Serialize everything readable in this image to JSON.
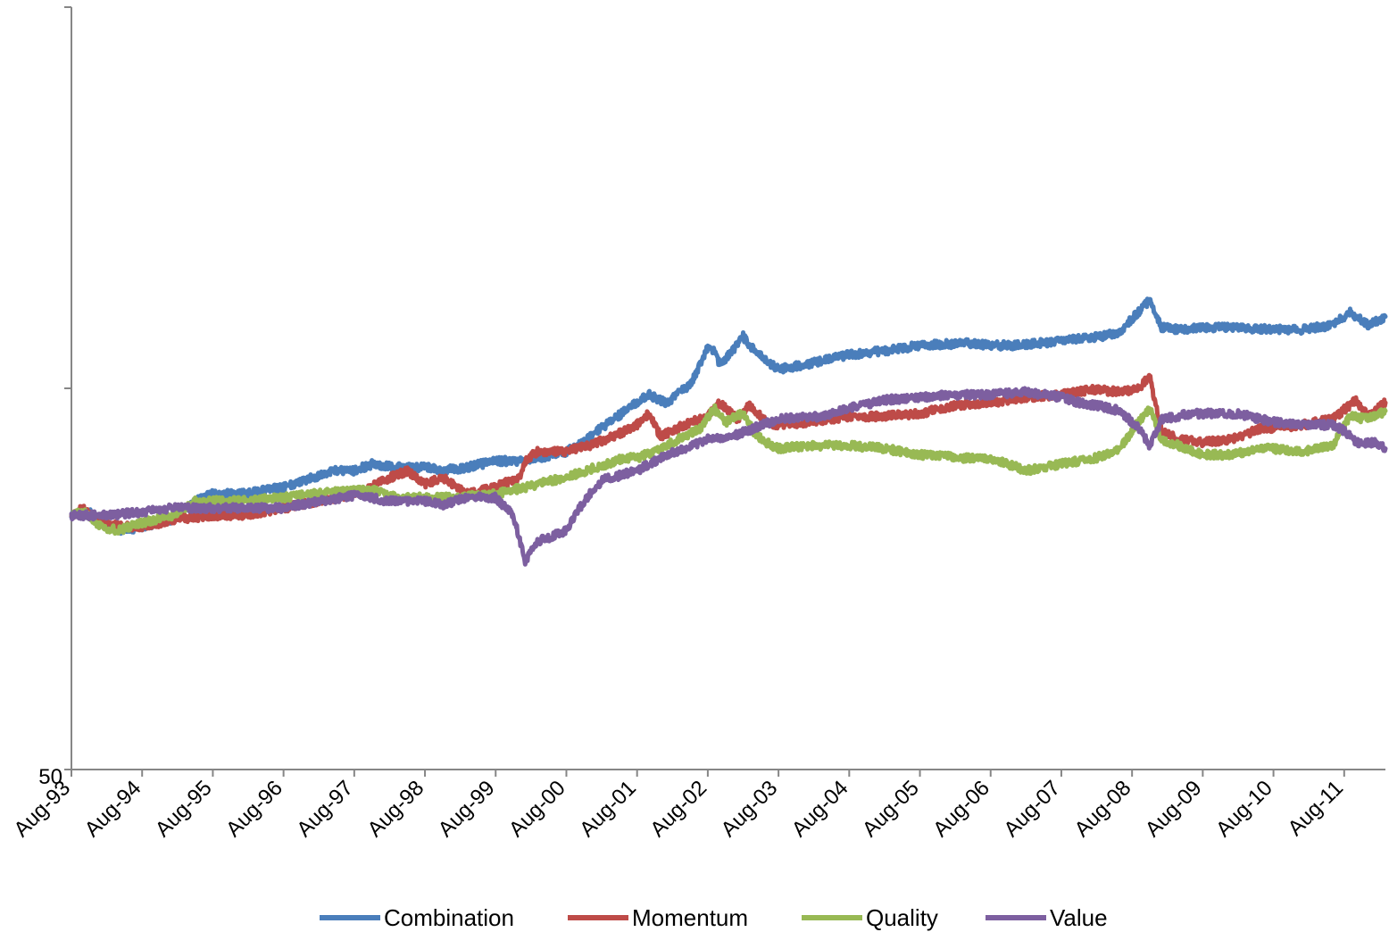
{
  "chart_data": {
    "type": "line",
    "y_scale": "log",
    "ylim": [
      50,
      400
    ],
    "y_tick_values": [
      50,
      141.42,
      400
    ],
    "y_tick_labels": [
      "50",
      "",
      ""
    ],
    "xlim": [
      "1993-08",
      "2012-03"
    ],
    "x_tick_labels": [
      "Aug-93",
      "Aug-94",
      "Aug-95",
      "Aug-96",
      "Aug-97",
      "Aug-98",
      "Aug-99",
      "Aug-00",
      "Aug-01",
      "Aug-02",
      "Aug-03",
      "Aug-04",
      "Aug-05",
      "Aug-06",
      "Aug-07",
      "Aug-08",
      "Aug-09",
      "Aug-10",
      "Aug-11"
    ],
    "x_tick_dates": [
      "1993-08",
      "1994-08",
      "1995-08",
      "1996-08",
      "1997-08",
      "1998-08",
      "1999-08",
      "2000-08",
      "2001-08",
      "2002-08",
      "2003-08",
      "2004-08",
      "2005-08",
      "2006-08",
      "2007-08",
      "2008-08",
      "2009-08",
      "2010-08",
      "2011-08"
    ],
    "grid": false,
    "legend_position": "bottom",
    "series": [
      {
        "name": "Combination",
        "color": "#4A7EBB",
        "points": [
          [
            "1993-08",
            100
          ],
          [
            "1993-11",
            101
          ],
          [
            "1994-02",
            97
          ],
          [
            "1994-05",
            96
          ],
          [
            "1994-08",
            97
          ],
          [
            "1995-01",
            99
          ],
          [
            "1995-05",
            104
          ],
          [
            "1995-08",
            106
          ],
          [
            "1996-01",
            106
          ],
          [
            "1996-08",
            108
          ],
          [
            "1997-01",
            111
          ],
          [
            "1997-05",
            113
          ],
          [
            "1997-08",
            113
          ],
          [
            "1997-11",
            115
          ],
          [
            "1998-03",
            114
          ],
          [
            "1998-08",
            114
          ],
          [
            "1998-11",
            113
          ],
          [
            "1999-03",
            114
          ],
          [
            "1999-08",
            116
          ],
          [
            "2000-01",
            116
          ],
          [
            "2000-08",
            119
          ],
          [
            "2000-10",
            121
          ],
          [
            "2001-02",
            127
          ],
          [
            "2001-06",
            133
          ],
          [
            "2001-08",
            136
          ],
          [
            "2001-10",
            139
          ],
          [
            "2002-01",
            136
          ],
          [
            "2002-05",
            143
          ],
          [
            "2002-07",
            152
          ],
          [
            "2002-08",
            158
          ],
          [
            "2002-09",
            157
          ],
          [
            "2002-10",
            151
          ],
          [
            "2002-12",
            156
          ],
          [
            "2003-02",
            163
          ],
          [
            "2003-03",
            159
          ],
          [
            "2003-06",
            152
          ],
          [
            "2003-08",
            149
          ],
          [
            "2004-01",
            151
          ],
          [
            "2004-08",
            155
          ],
          [
            "2005-03",
            157
          ],
          [
            "2005-08",
            159
          ],
          [
            "2006-04",
            160
          ],
          [
            "2006-08",
            159
          ],
          [
            "2007-01",
            159
          ],
          [
            "2007-08",
            161
          ],
          [
            "2008-03",
            163
          ],
          [
            "2008-06",
            165
          ],
          [
            "2008-09",
            174
          ],
          [
            "2008-11",
            180
          ],
          [
            "2009-01",
            167
          ],
          [
            "2009-04",
            166
          ],
          [
            "2009-08",
            167
          ],
          [
            "2010-01",
            167
          ],
          [
            "2010-08",
            166
          ],
          [
            "2011-01",
            166
          ],
          [
            "2011-06",
            168
          ],
          [
            "2011-09",
            174
          ],
          [
            "2011-12",
            168
          ],
          [
            "2012-03",
            172
          ]
        ]
      },
      {
        "name": "Momentum",
        "color": "#BE4B48",
        "points": [
          [
            "1993-08",
            100
          ],
          [
            "1993-10",
            102
          ],
          [
            "1994-01",
            98
          ],
          [
            "1994-05",
            97
          ],
          [
            "1994-08",
            97
          ],
          [
            "1995-02",
            99
          ],
          [
            "1995-08",
            100
          ],
          [
            "1996-01",
            100
          ],
          [
            "1996-08",
            102
          ],
          [
            "1997-02",
            104
          ],
          [
            "1997-08",
            106
          ],
          [
            "1998-01",
            110
          ],
          [
            "1998-05",
            113
          ],
          [
            "1998-08",
            109
          ],
          [
            "1998-11",
            111
          ],
          [
            "1999-03",
            106
          ],
          [
            "1999-08",
            108
          ],
          [
            "1999-12",
            111
          ],
          [
            "2000-01",
            116
          ],
          [
            "2000-03",
            119
          ],
          [
            "2000-08",
            119
          ],
          [
            "2000-12",
            121
          ],
          [
            "2001-05",
            125
          ],
          [
            "2001-08",
            128
          ],
          [
            "2001-10",
            132
          ],
          [
            "2001-12",
            124
          ],
          [
            "2002-04",
            128
          ],
          [
            "2002-08",
            131
          ],
          [
            "2002-10",
            136
          ],
          [
            "2003-01",
            130
          ],
          [
            "2003-03",
            135
          ],
          [
            "2003-06",
            129
          ],
          [
            "2003-08",
            128
          ],
          [
            "2004-01",
            129
          ],
          [
            "2004-08",
            131
          ],
          [
            "2005-02",
            131
          ],
          [
            "2005-08",
            132
          ],
          [
            "2006-02",
            135
          ],
          [
            "2006-08",
            136
          ],
          [
            "2007-02",
            138
          ],
          [
            "2007-08",
            139
          ],
          [
            "2008-01",
            141
          ],
          [
            "2008-06",
            140
          ],
          [
            "2008-09",
            141
          ],
          [
            "2008-11",
            146
          ],
          [
            "2009-01",
            126
          ],
          [
            "2009-04",
            123
          ],
          [
            "2009-08",
            122
          ],
          [
            "2010-01",
            123
          ],
          [
            "2010-06",
            127
          ],
          [
            "2010-08",
            127
          ],
          [
            "2011-01",
            128
          ],
          [
            "2011-06",
            130
          ],
          [
            "2011-10",
            137
          ],
          [
            "2011-12",
            131
          ],
          [
            "2012-03",
            136
          ]
        ]
      },
      {
        "name": "Quality",
        "color": "#98B954",
        "points": [
          [
            "1993-08",
            100
          ],
          [
            "1993-10",
            101
          ],
          [
            "1994-01",
            97
          ],
          [
            "1994-04",
            96
          ],
          [
            "1994-08",
            98
          ],
          [
            "1995-01",
            100
          ],
          [
            "1995-05",
            104
          ],
          [
            "1995-08",
            104
          ],
          [
            "1996-01",
            104
          ],
          [
            "1996-08",
            105
          ],
          [
            "1997-01",
            106
          ],
          [
            "1997-08",
            107
          ],
          [
            "1997-12",
            107
          ],
          [
            "1998-03",
            105
          ],
          [
            "1998-08",
            105
          ],
          [
            "1999-01",
            105
          ],
          [
            "1999-08",
            106
          ],
          [
            "2000-01",
            108
          ],
          [
            "2000-08",
            111
          ],
          [
            "2001-01",
            114
          ],
          [
            "2001-06",
            117
          ],
          [
            "2001-08",
            117
          ],
          [
            "2001-11",
            119
          ],
          [
            "2002-03",
            123
          ],
          [
            "2002-07",
            127
          ],
          [
            "2002-09",
            134
          ],
          [
            "2002-11",
            129
          ],
          [
            "2003-02",
            132
          ],
          [
            "2003-04",
            125
          ],
          [
            "2003-06",
            122
          ],
          [
            "2003-08",
            120
          ],
          [
            "2004-01",
            121
          ],
          [
            "2004-08",
            121
          ],
          [
            "2005-02",
            120
          ],
          [
            "2005-08",
            118
          ],
          [
            "2006-03",
            117
          ],
          [
            "2006-08",
            117
          ],
          [
            "2007-02",
            113
          ],
          [
            "2007-08",
            115
          ],
          [
            "2008-02",
            117
          ],
          [
            "2008-06",
            120
          ],
          [
            "2008-09",
            129
          ],
          [
            "2008-11",
            134
          ],
          [
            "2009-01",
            123
          ],
          [
            "2009-04",
            121
          ],
          [
            "2009-08",
            118
          ],
          [
            "2010-01",
            118
          ],
          [
            "2010-06",
            120
          ],
          [
            "2010-08",
            120
          ],
          [
            "2011-01",
            119
          ],
          [
            "2011-06",
            121
          ],
          [
            "2011-09",
            131
          ],
          [
            "2011-12",
            130
          ],
          [
            "2012-03",
            133
          ]
        ]
      },
      {
        "name": "Value",
        "color": "#7D5FA0",
        "points": [
          [
            "1993-08",
            100
          ],
          [
            "1993-11",
            100
          ],
          [
            "1994-02",
            100
          ],
          [
            "1994-08",
            101
          ],
          [
            "1995-01",
            102
          ],
          [
            "1995-06",
            102
          ],
          [
            "1995-08",
            102
          ],
          [
            "1996-01",
            102
          ],
          [
            "1996-08",
            102
          ],
          [
            "1997-02",
            104
          ],
          [
            "1997-06",
            105
          ],
          [
            "1997-09",
            106
          ],
          [
            "1998-01",
            104
          ],
          [
            "1998-08",
            104
          ],
          [
            "1998-11",
            103
          ],
          [
            "1999-03",
            105
          ],
          [
            "1999-08",
            105
          ],
          [
            "1999-11",
            100
          ],
          [
            "2000-01",
            88
          ],
          [
            "2000-03",
            93
          ],
          [
            "2000-08",
            96
          ],
          [
            "2000-11",
            104
          ],
          [
            "2001-02",
            110
          ],
          [
            "2001-08",
            113
          ],
          [
            "2002-01",
            118
          ],
          [
            "2002-08",
            123
          ],
          [
            "2002-12",
            124
          ],
          [
            "2003-04",
            127
          ],
          [
            "2003-08",
            130
          ],
          [
            "2004-03",
            131
          ],
          [
            "2004-08",
            134
          ],
          [
            "2005-02",
            137
          ],
          [
            "2005-08",
            138
          ],
          [
            "2006-02",
            139
          ],
          [
            "2006-08",
            139
          ],
          [
            "2007-02",
            140
          ],
          [
            "2007-08",
            138
          ],
          [
            "2007-11",
            136
          ],
          [
            "2008-02",
            135
          ],
          [
            "2008-06",
            133
          ],
          [
            "2008-09",
            127
          ],
          [
            "2008-11",
            121
          ],
          [
            "2009-01",
            130
          ],
          [
            "2009-06",
            132
          ],
          [
            "2009-08",
            132
          ],
          [
            "2010-02",
            132
          ],
          [
            "2010-08",
            129
          ],
          [
            "2011-01",
            128
          ],
          [
            "2011-06",
            128
          ],
          [
            "2011-08",
            126
          ],
          [
            "2011-10",
            122
          ],
          [
            "2012-01",
            122
          ],
          [
            "2012-03",
            120
          ]
        ]
      }
    ]
  }
}
